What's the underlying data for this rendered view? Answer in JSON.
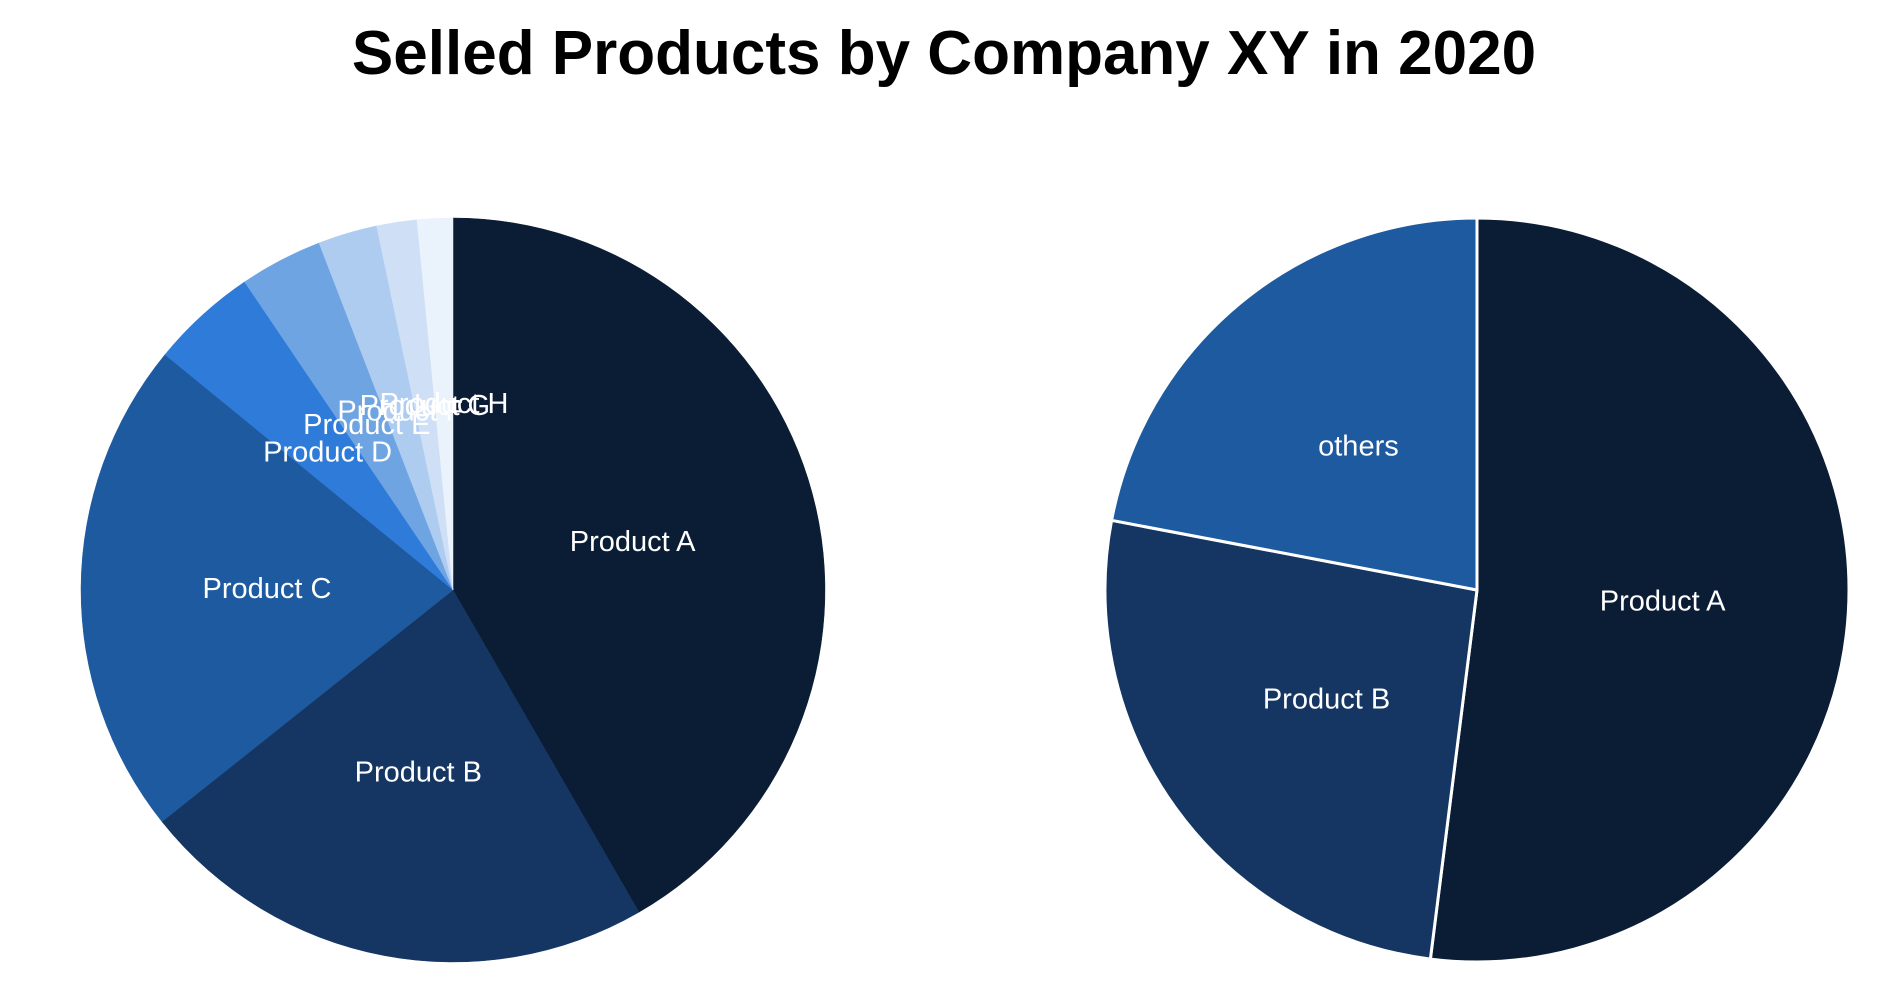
{
  "title": "Selled Products by Company XY in 2020",
  "chart_data": [
    {
      "type": "pie",
      "name": "all-products",
      "categories": [
        "Product A",
        "Product B",
        "Product C",
        "Product D",
        "Product E",
        "Product F",
        "Product G",
        "Product H"
      ],
      "values": [
        40.5,
        22.0,
        21.0,
        4.5,
        3.5,
        2.5,
        1.7,
        1.5
      ],
      "colors": [
        "#0b1d35",
        "#153662",
        "#1e5aa0",
        "#2f7bd9",
        "#6ea4e2",
        "#aecbf0",
        "#cfe0f6",
        "#eaf2fc"
      ],
      "start": "top",
      "direction": "clockwise",
      "slice_border": false
    },
    {
      "type": "pie",
      "name": "grouped",
      "categories": [
        "Product A",
        "Product B",
        "others"
      ],
      "values": [
        52.0,
        26.0,
        22.0
      ],
      "colors": [
        "#0b1d35",
        "#153662",
        "#1e5aa0"
      ],
      "start": "top",
      "direction": "clockwise",
      "slice_border": true,
      "border_color": "#ffffff"
    }
  ]
}
